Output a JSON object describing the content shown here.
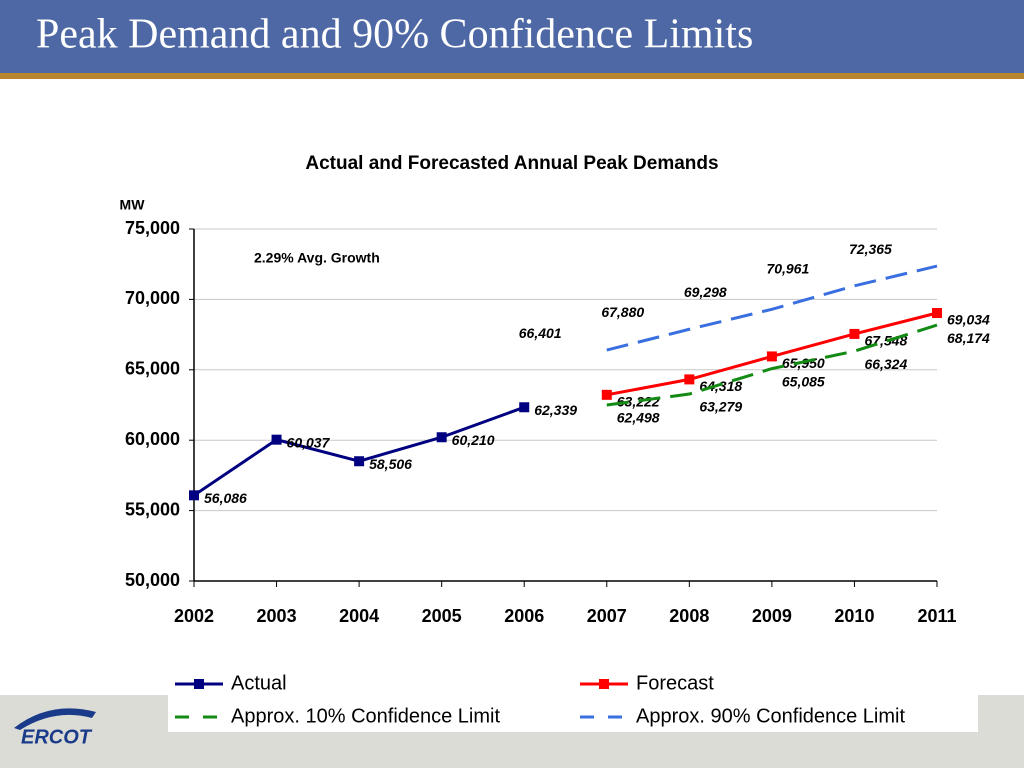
{
  "header": {
    "title": "Peak Demand and 90% Confidence Limits"
  },
  "footer": {
    "logo": "ERCOT"
  },
  "chart_data": {
    "type": "line",
    "title": "Actual and Forecasted Annual Peak Demands",
    "y_label": "MW",
    "annotation": "2.29% Avg. Growth",
    "categories": [
      "2002",
      "2003",
      "2004",
      "2005",
      "2006",
      "2007",
      "2008",
      "2009",
      "2010",
      "2011"
    ],
    "ylim": [
      50000,
      75000
    ],
    "yticks": [
      {
        "value": 50000,
        "label": "50,000"
      },
      {
        "value": 55000,
        "label": "55,000"
      },
      {
        "value": 60000,
        "label": "60,000"
      },
      {
        "value": 65000,
        "label": "65,000"
      },
      {
        "value": 70000,
        "label": "70,000"
      },
      {
        "value": 75000,
        "label": "75,000"
      }
    ],
    "grid": true,
    "series": [
      {
        "name": "Actual",
        "color": "#000080",
        "marker": true,
        "dashed": false,
        "values": [
          56086,
          60037,
          58506,
          60210,
          62339,
          null,
          null,
          null,
          null,
          null
        ],
        "value_labels": [
          "56,086",
          "60,037",
          "58,506",
          "60,210",
          "62,339",
          null,
          null,
          null,
          null,
          null
        ]
      },
      {
        "name": "Forecast",
        "color": "#ff0000",
        "marker": true,
        "dashed": false,
        "values": [
          null,
          null,
          null,
          null,
          null,
          63222,
          64318,
          65950,
          67548,
          69034
        ],
        "value_labels": [
          null,
          null,
          null,
          null,
          null,
          "63,222",
          "64,318",
          "65,950",
          "67,548",
          "69,034"
        ]
      },
      {
        "name": "Approx. 10% Confidence Limit",
        "color": "#138a13",
        "marker": false,
        "dashed": true,
        "values": [
          null,
          null,
          null,
          null,
          null,
          62498,
          63279,
          65085,
          66324,
          68174
        ],
        "value_labels": [
          null,
          null,
          null,
          null,
          null,
          "62,498",
          "63,279",
          "65,085",
          "66,324",
          "68,174"
        ]
      },
      {
        "name": "Approx. 90% Confidence Limit",
        "color": "#3a6fe0",
        "marker": false,
        "dashed": true,
        "values": [
          null,
          null,
          null,
          null,
          null,
          66401,
          67880,
          69298,
          70961,
          72365
        ],
        "value_labels": [
          null,
          null,
          null,
          null,
          null,
          "66,401",
          "67,880",
          "69,298",
          "70,961",
          "72,365"
        ]
      }
    ]
  }
}
